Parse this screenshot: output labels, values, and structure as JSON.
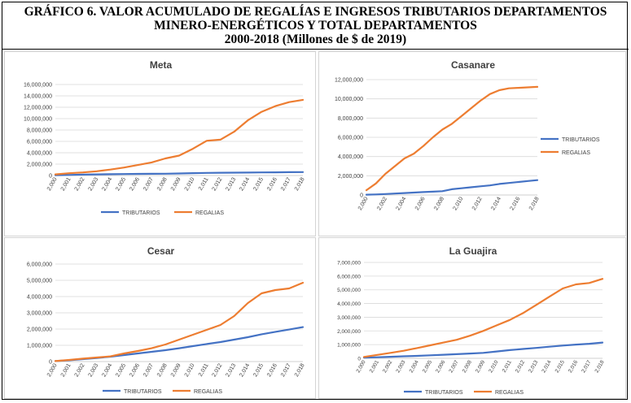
{
  "title_lines": [
    "GRÁFICO 6. VALOR ACUMULADO DE REGALÍAS E INGRESOS TRIBUTARIOS  DEPARTAMENTOS",
    "MINERO-ENERGÉTICOS Y TOTAL DEPARTAMENTOS",
    "2000-2018 (Millones de $ de 2019)"
  ],
  "colors": {
    "tributarios": "#4472c4",
    "regalias": "#ed7d31",
    "grid": "#d9d9d9",
    "text": "#404040"
  },
  "chart_data": [
    {
      "type": "line",
      "title": "Meta",
      "x": [
        "2,000",
        "2,001",
        "2,002",
        "2,003",
        "2,004",
        "2,005",
        "2,006",
        "2,007",
        "2,008",
        "2,009",
        "2,010",
        "2,011",
        "2,012",
        "2,013",
        "2,014",
        "2,015",
        "2,016",
        "2,017",
        "2,018"
      ],
      "ylim": [
        0,
        16000000
      ],
      "yticks": [
        "0",
        "2,000,000",
        "4,000,000",
        "6,000,000",
        "8,000,000",
        "10,000,000",
        "12,000,000",
        "14,000,000",
        "16,000,000"
      ],
      "series": [
        {
          "name": "TRIBUTARIOS",
          "values": [
            50000,
            100000,
            150000,
            200000,
            230000,
            260000,
            280000,
            300000,
            320000,
            360000,
            420000,
            460000,
            480000,
            500000,
            520000,
            540000,
            560000,
            580000,
            600000
          ]
        },
        {
          "name": "REGALIAS",
          "values": [
            200000,
            400000,
            550000,
            750000,
            1050000,
            1400000,
            1850000,
            2300000,
            3000000,
            3500000,
            4700000,
            6100000,
            6300000,
            7700000,
            9700000,
            11200000,
            12200000,
            12900000,
            13300000
          ]
        }
      ],
      "legend": "bottom"
    },
    {
      "type": "line",
      "title": "Casanare",
      "x": [
        "2,000",
        "2,001",
        "2,002",
        "2,003",
        "2,004",
        "2,005",
        "2,006",
        "2,007",
        "2,008",
        "2,009",
        "2,010",
        "2,011",
        "2,012",
        "2,013",
        "2,014",
        "2,015",
        "2,016",
        "2,017",
        "2,018"
      ],
      "xticks": [
        "2,000",
        "2,002",
        "2,004",
        "2,006",
        "2,008",
        "2,010",
        "2,012",
        "2,014",
        "2,016",
        "2,018"
      ],
      "ylim": [
        0,
        12000000
      ],
      "yticks": [
        "0",
        "2,000,000",
        "4,000,000",
        "6,000,000",
        "8,000,000",
        "10,000,000",
        "12,000,000"
      ],
      "series": [
        {
          "name": "TRIBUTARIOS",
          "values": [
            30000,
            60000,
            100000,
            150000,
            200000,
            250000,
            300000,
            350000,
            400000,
            600000,
            700000,
            800000,
            900000,
            1000000,
            1150000,
            1250000,
            1350000,
            1450000,
            1550000
          ]
        },
        {
          "name": "REGALIAS",
          "values": [
            500000,
            1200000,
            2200000,
            3000000,
            3800000,
            4300000,
            5100000,
            6000000,
            6800000,
            7400000,
            8200000,
            9000000,
            9800000,
            10500000,
            10900000,
            11100000,
            11150000,
            11200000,
            11250000
          ]
        }
      ],
      "legend": "right"
    },
    {
      "type": "line",
      "title": "Cesar",
      "x": [
        "2,000",
        "2,001",
        "2,002",
        "2,003",
        "2,004",
        "2,005",
        "2,006",
        "2,007",
        "2,008",
        "2,009",
        "2,010",
        "2,011",
        "2,012",
        "2,013",
        "2,014",
        "2,015",
        "2,016",
        "2,017",
        "2,018"
      ],
      "ylim": [
        0,
        6000000
      ],
      "yticks": [
        "0",
        "1,000,000",
        "2,000,000",
        "3,000,000",
        "4,000,000",
        "5,000,000",
        "6,000,000"
      ],
      "series": [
        {
          "name": "TRIBUTARIOS",
          "values": [
            30000,
            80000,
            150000,
            220000,
            300000,
            400000,
            500000,
            600000,
            700000,
            820000,
            950000,
            1080000,
            1200000,
            1350000,
            1500000,
            1680000,
            1830000,
            1970000,
            2120000
          ]
        },
        {
          "name": "REGALIAS",
          "values": [
            30000,
            100000,
            180000,
            250000,
            320000,
            500000,
            650000,
            820000,
            1050000,
            1350000,
            1650000,
            1950000,
            2250000,
            2800000,
            3600000,
            4200000,
            4400000,
            4500000,
            4850000
          ]
        }
      ],
      "legend": "bottom"
    },
    {
      "type": "line",
      "title": "La Guajira",
      "x": [
        "2,000",
        "2,001",
        "2,002",
        "2,003",
        "2,004",
        "2,005",
        "2,006",
        "2,007",
        "2,008",
        "2,009",
        "2,010",
        "2,011",
        "2,012",
        "2,013",
        "2,014",
        "2,015",
        "2,016",
        "2,017",
        "2,018"
      ],
      "ylim": [
        0,
        7000000
      ],
      "yticks": [
        "0",
        "1,000,000",
        "2,000,000",
        "3,000,000",
        "4,000,000",
        "5,000,000",
        "6,000,000",
        "7,000,000"
      ],
      "series": [
        {
          "name": "TRIBUTARIOS",
          "values": [
            50000,
            80000,
            110000,
            150000,
            180000,
            220000,
            260000,
            300000,
            350000,
            400000,
            500000,
            600000,
            680000,
            760000,
            850000,
            930000,
            1000000,
            1060000,
            1150000
          ]
        },
        {
          "name": "REGALIAS",
          "values": [
            100000,
            250000,
            400000,
            550000,
            750000,
            950000,
            1150000,
            1350000,
            1650000,
            2000000,
            2400000,
            2800000,
            3300000,
            3900000,
            4500000,
            5100000,
            5400000,
            5500000,
            5800000
          ]
        }
      ],
      "legend": "bottom"
    }
  ]
}
